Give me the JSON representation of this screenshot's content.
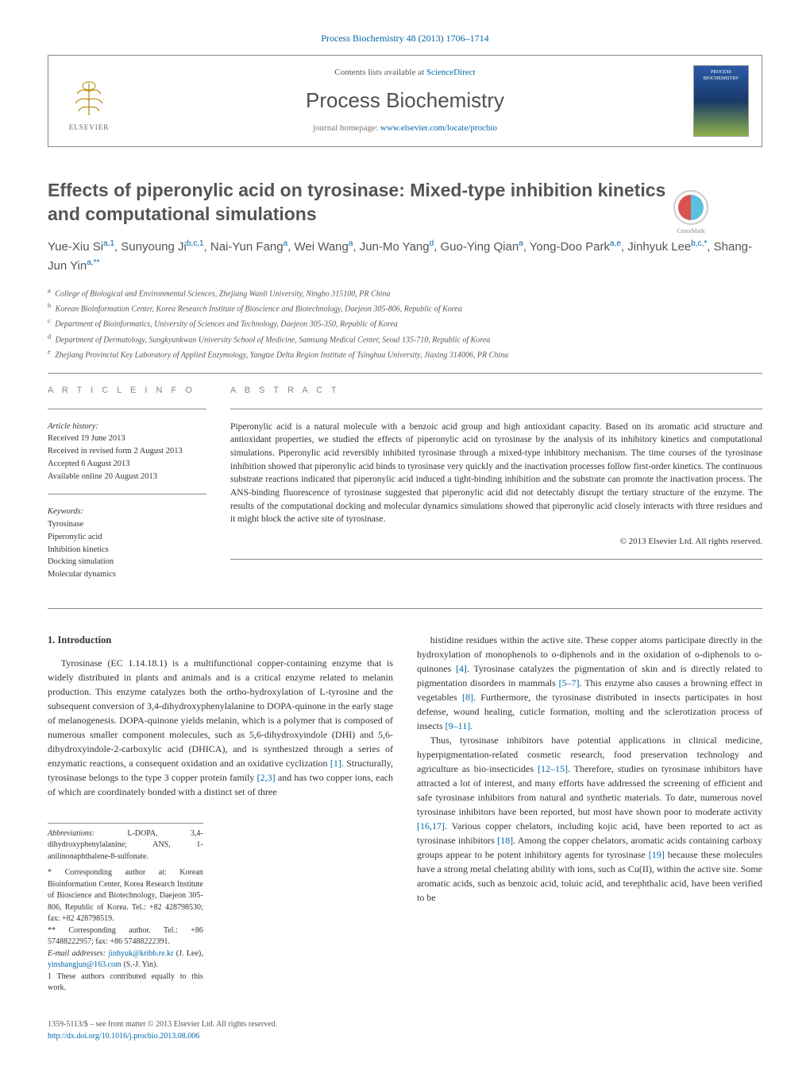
{
  "journal_ref": "Process Biochemistry 48 (2013) 1706–1714",
  "header": {
    "contents_line_prefix": "Contents lists available at ",
    "contents_link": "ScienceDirect",
    "journal_title": "Process Biochemistry",
    "homepage_prefix": "journal homepage: ",
    "homepage_url": "www.elsevier.com/locate/procbio",
    "publisher_name": "ELSEVIER",
    "cover_label": "PROCESS BIOCHEMISTRY"
  },
  "crossmark_label": "CrossMark",
  "title": "Effects of piperonylic acid on tyrosinase: Mixed-type inhibition kinetics and computational simulations",
  "authors_html": "Yue-Xiu Si<sup>a,1</sup>, Sunyoung Ji<sup>b,c,1</sup>, Nai-Yun Fang<sup>a</sup>, Wei Wang<sup>a</sup>, Jun-Mo Yang<sup>d</sup>, Guo-Ying Qian<sup>a</sup>, Yong-Doo Park<sup>a,e</sup>, Jinhyuk Lee<sup>b,c,*</sup>, Shang-Jun Yin<sup>a,**</sup>",
  "affiliations": [
    {
      "sup": "a",
      "text": "College of Biological and Environmental Sciences, Zhejiang Wanli University, Ningbo 315100, PR China"
    },
    {
      "sup": "b",
      "text": "Korean Bioinformation Center, Korea Research Institute of Bioscience and Biotechnology, Daejeon 305-806, Republic of Korea"
    },
    {
      "sup": "c",
      "text": "Department of Bioinformatics, University of Sciences and Technology, Daejeon 305-350, Republic of Korea"
    },
    {
      "sup": "d",
      "text": "Department of Dermatology, Sungkyunkwan University School of Medicine, Samsung Medical Center, Seoul 135-710, Republic of Korea"
    },
    {
      "sup": "e",
      "text": "Zhejiang Provincial Key Laboratory of Applied Enzymology, Yangtze Delta Region Institute of Tsinghua University, Jiaxing 314006, PR China"
    }
  ],
  "article_info": {
    "heading": "a r t i c l e   i n f o",
    "history_label": "Article history:",
    "history": [
      "Received 19 June 2013",
      "Received in revised form 2 August 2013",
      "Accepted 6 August 2013",
      "Available online 20 August 2013"
    ],
    "keywords_label": "Keywords:",
    "keywords": [
      "Tyrosinase",
      "Piperonylic acid",
      "Inhibition kinetics",
      "Docking simulation",
      "Molecular dynamics"
    ]
  },
  "abstract": {
    "heading": "a b s t r a c t",
    "text": "Piperonylic acid is a natural molecule with a benzoic acid group and high antioxidant capacity. Based on its aromatic acid structure and antioxidant properties, we studied the effects of piperonylic acid on tyrosinase by the analysis of its inhibitory kinetics and computational simulations. Piperonylic acid reversibly inhibited tyrosinase through a mixed-type inhibitory mechanism. The time courses of the tyrosinase inhibition showed that piperonylic acid binds to tyrosinase very quickly and the inactivation processes follow first-order kinetics. The continuous substrate reactions indicated that piperonylic acid induced a tight-binding inhibition and the substrate can promote the inactivation process. The ANS-binding fluorescence of tyrosinase suggested that piperonylic acid did not detectably disrupt the tertiary structure of the enzyme. The results of the computational docking and molecular dynamics simulations showed that piperonylic acid closely interacts with three residues and it might block the active site of tyrosinase.",
    "copyright": "© 2013 Elsevier Ltd. All rights reserved."
  },
  "body": {
    "section_num": "1.",
    "section_title": "Introduction",
    "col1_p1": "Tyrosinase (EC 1.14.18.1) is a multifunctional copper-containing enzyme that is widely distributed in plants and animals and is a critical enzyme related to melanin production. This enzyme catalyzes both the ortho-hydroxylation of L-tyrosine and the subsequent conversion of 3,4-dihydroxyphenylalanine to DOPA-quinone in the early stage of melanogenesis. DOPA-quinone yields melanin, which is a polymer that is composed of numerous smaller component molecules, such as 5,6-dihydroxyindole (DHI) and 5,6-dihydroxyindole-2-carboxylic acid (DHICA), and is synthesized through a series of enzymatic reactions, a consequent oxidation and an oxidative cyclization [1]. Structurally, tyrosinase belongs to the type 3 copper protein family [2,3] and has two copper ions, each of which are coordinately bonded with a distinct set of three",
    "col2_p1": "histidine residues within the active site. These copper atoms participate directly in the hydroxylation of monophenols to o-diphenols and in the oxidation of o-diphenols to o-quinones [4]. Tyrosinase catalyzes the pigmentation of skin and is directly related to pigmentation disorders in mammals [5–7]. This enzyme also causes a browning effect in vegetables [8]. Furthermore, the tyrosinase distributed in insects participates in host defense, wound healing, cuticle formation, molting and the sclerotization process of insects [9–11].",
    "col2_p2": "Thus, tyrosinase inhibitors have potential applications in clinical medicine, hyperpigmentation-related cosmetic research, food preservation technology and agriculture as bio-insecticides [12–15]. Therefore, studies on tyrosinase inhibitors have attracted a lot of interest, and many efforts have addressed the screening of efficient and safe tyrosinase inhibitors from natural and synthetic materials. To date, numerous novel tyrosinase inhibitors have been reported, but most have shown poor to moderate activity [16,17]. Various copper chelators, including kojic acid, have been reported to act as tyrosinase inhibitors [18]. Among the copper chelators, aromatic acids containing carboxy groups appear to be potent inhibitory agents for tyrosinase [19] because these molecules have a strong metal chelating ability with ions, such as Cu(II), within the active site. Some aromatic acids, such as benzoic acid, toluic acid, and terephthalic acid, have been verified to be"
  },
  "footnotes": {
    "abbrev_label": "Abbreviations:",
    "abbrev_text": " L-DOPA, 3,4-dihydroxyphenylalanine; ANS, 1-anilinonaphthalene-8-sulfonate.",
    "corr1": "* Corresponding author at: Korean Bioinformation Center, Korea Research Institute of Bioscience and Biotechnology, Daejeon 305-806, Republic of Korea. Tel.: +82 428798530; fax: +82 428798519.",
    "corr2": "** Corresponding author. Tel.: +86 57488222957; fax: +86 57488222391.",
    "emails_label": "E-mail addresses: ",
    "email1": "jinhyuk@kribb.re.kr",
    "email1_who": " (J. Lee), ",
    "email2": "yinshangjun@163.com",
    "email2_who": " (S.-J. Yin).",
    "equal": "1 These authors contributed equally to this work."
  },
  "bottom": {
    "issn_line": "1359-5113/$ – see front matter © 2013 Elsevier Ltd. All rights reserved.",
    "doi": "http://dx.doi.org/10.1016/j.procbio.2013.08.006"
  },
  "colors": {
    "link": "#0066aa",
    "text": "#333333",
    "muted": "#888888",
    "title_gray": "#555555"
  }
}
